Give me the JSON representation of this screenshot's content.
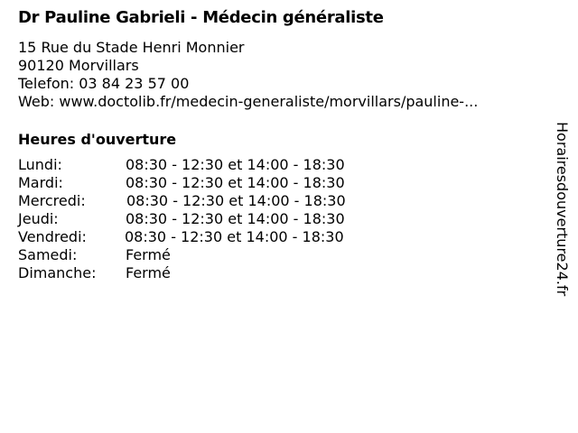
{
  "title": "Dr Pauline Gabrieli - Médecin généraliste",
  "address": {
    "street": "15 Rue du Stade Henri Monnier",
    "city": "90120 Morvillars",
    "phone": "Telefon: 03 84 23 57 00",
    "web": "Web: www.doctolib.fr/medecin-generaliste/morvillars/pauline-..."
  },
  "hours_heading": "Heures d'ouverture",
  "hours": [
    {
      "day": "Lundi:",
      "time": "08:30 - 12:30 et 14:00 - 18:30"
    },
    {
      "day": "Mardi:",
      "time": "08:30 - 12:30 et 14:00 - 18:30"
    },
    {
      "day": "Mercredi:",
      "time": "08:30 - 12:30 et 14:00 - 18:30"
    },
    {
      "day": "Jeudi:",
      "time": "08:30 - 12:30 et 14:00 - 18:30"
    },
    {
      "day": "Vendredi:",
      "time": "08:30 - 12:30 et 14:00 - 18:30"
    },
    {
      "day": "Samedi:",
      "time": "Fermé"
    },
    {
      "day": "Dimanche:",
      "time": "Fermé"
    }
  ],
  "watermark": "Horairesdouverture24.fr"
}
